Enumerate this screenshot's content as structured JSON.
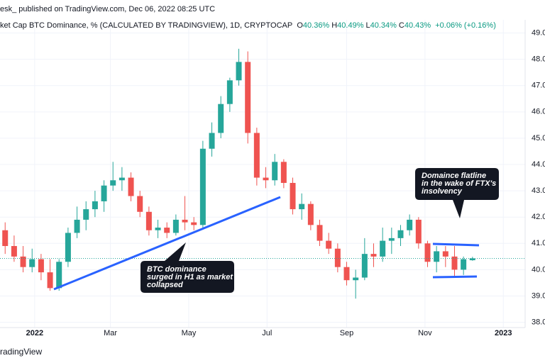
{
  "chart_data": {
    "type": "candlestick",
    "publisher_line": "esk_ published on TradingView.com, Dec 06, 2022 08:25 UTC",
    "title": "ket Cap BTC Dominance, % (CALCULATED BY TRADINGVIEW), 1D, CRYPTOCAP",
    "ohlc_legend": [
      {
        "label": "O",
        "value": "40.36%"
      },
      {
        "label": "H",
        "value": "40.49%"
      },
      {
        "label": "L",
        "value": "40.34%"
      },
      {
        "label": "C",
        "value": "40.43%"
      }
    ],
    "change": "+0.06% (+0.16%)",
    "footer": "radingView",
    "up_color": "#26a69a",
    "down_color": "#ef5350",
    "grid": true,
    "xlim": [
      "2021-12-05",
      "2023-01-18"
    ],
    "xticks": [
      {
        "value": "2022-01-01",
        "label": "2022"
      },
      {
        "value": "2022-03-01",
        "label": "Mar"
      },
      {
        "value": "2022-05-01",
        "label": "May"
      },
      {
        "value": "2022-07-01",
        "label": "Jul"
      },
      {
        "value": "2022-09-01",
        "label": "Sep"
      },
      {
        "value": "2022-11-01",
        "label": "Nov"
      },
      {
        "value": "2023-01-01",
        "label": "2023"
      }
    ],
    "ylim": [
      37.8,
      49.5
    ],
    "yticks": [
      {
        "value": 38,
        "label": "38.00"
      },
      {
        "value": 39,
        "label": "39.00"
      },
      {
        "value": 40,
        "label": "40.00"
      },
      {
        "value": 41,
        "label": "41.00"
      },
      {
        "value": 42,
        "label": "42.00"
      },
      {
        "value": 43,
        "label": "43.00"
      },
      {
        "value": 44,
        "label": "44.00"
      },
      {
        "value": 45,
        "label": "45.00"
      },
      {
        "value": 46,
        "label": "46.00"
      },
      {
        "value": 47,
        "label": "47.00"
      },
      {
        "value": 48,
        "label": "48.00"
      },
      {
        "value": 49,
        "label": "49.00"
      }
    ],
    "x": [
      "2021-12-06",
      "2021-12-13",
      "2021-12-20",
      "2021-12-27",
      "2022-01-03",
      "2022-01-10",
      "2022-01-17",
      "2022-01-24",
      "2022-01-31",
      "2022-02-07",
      "2022-02-14",
      "2022-02-21",
      "2022-02-28",
      "2022-03-07",
      "2022-03-14",
      "2022-03-21",
      "2022-03-28",
      "2022-04-04",
      "2022-04-11",
      "2022-04-18",
      "2022-04-25",
      "2022-05-02",
      "2022-05-09",
      "2022-05-16",
      "2022-05-23",
      "2022-05-30",
      "2022-06-06",
      "2022-06-13",
      "2022-06-20",
      "2022-06-27",
      "2022-07-04",
      "2022-07-11",
      "2022-07-18",
      "2022-07-25",
      "2022-08-01",
      "2022-08-08",
      "2022-08-15",
      "2022-08-22",
      "2022-08-29",
      "2022-09-05",
      "2022-09-12",
      "2022-09-19",
      "2022-09-26",
      "2022-10-03",
      "2022-10-10",
      "2022-10-17",
      "2022-10-24",
      "2022-10-31",
      "2022-11-07",
      "2022-11-14",
      "2022-11-21",
      "2022-11-28",
      "2022-12-05"
    ],
    "open": [
      41.5,
      40.9,
      40.5,
      40.1,
      40.4,
      39.9,
      39.3,
      40.3,
      41.4,
      41.9,
      42.3,
      42.6,
      43.2,
      43.4,
      43.5,
      42.8,
      42.2,
      41.5,
      41.6,
      41.4,
      41.9,
      41.8,
      41.7,
      44.6,
      45.2,
      46.3,
      47.2,
      47.9,
      45.2,
      43.5,
      43.4,
      44.1,
      43.3,
      42.3,
      42.5,
      41.7,
      41.1,
      40.8,
      40.1,
      39.6,
      39.7,
      40.6,
      40.5,
      41.1,
      41.2,
      41.5,
      41.9,
      41.0,
      40.3,
      40.7,
      40.5,
      40.0,
      40.36
    ],
    "high": [
      41.8,
      41.3,
      40.9,
      40.8,
      40.6,
      40.4,
      40.4,
      41.6,
      42.4,
      42.6,
      43.0,
      43.4,
      44.1,
      43.9,
      43.7,
      43.0,
      42.4,
      41.9,
      41.8,
      42.1,
      42.8,
      42.0,
      44.9,
      45.6,
      46.6,
      47.3,
      48.4,
      48.3,
      45.4,
      43.9,
      44.4,
      44.2,
      43.5,
      42.9,
      42.6,
      41.9,
      41.4,
      41.0,
      40.3,
      40.0,
      41.2,
      41.0,
      41.6,
      41.6,
      41.7,
      42.1,
      42.0,
      41.1,
      40.9,
      40.9,
      40.9,
      40.5,
      40.49
    ],
    "low": [
      40.6,
      40.3,
      39.9,
      39.9,
      39.6,
      39.2,
      39.2,
      40.1,
      41.2,
      41.5,
      42.0,
      42.2,
      43.0,
      43.0,
      42.6,
      42.0,
      41.3,
      41.2,
      41.2,
      41.3,
      41.5,
      41.5,
      41.6,
      44.3,
      45.0,
      46.0,
      47.0,
      44.8,
      43.2,
      43.1,
      43.2,
      43.1,
      42.1,
      41.9,
      41.5,
      40.9,
      40.6,
      39.9,
      39.4,
      38.9,
      39.6,
      40.1,
      40.3,
      40.6,
      40.9,
      41.3,
      40.8,
      40.1,
      39.9,
      40.1,
      39.7,
      39.8,
      40.34
    ],
    "close": [
      40.9,
      40.5,
      40.1,
      40.4,
      39.9,
      39.3,
      40.3,
      41.4,
      41.9,
      42.3,
      42.6,
      43.2,
      43.4,
      43.5,
      42.8,
      42.2,
      41.5,
      41.6,
      41.4,
      41.9,
      41.8,
      41.7,
      44.6,
      45.2,
      46.3,
      47.2,
      47.9,
      45.2,
      43.5,
      43.4,
      44.1,
      43.3,
      42.3,
      42.5,
      41.7,
      41.1,
      40.8,
      40.1,
      39.6,
      39.7,
      40.6,
      40.5,
      41.1,
      41.2,
      41.5,
      41.9,
      41.0,
      40.3,
      40.7,
      40.5,
      40.0,
      40.4,
      40.43
    ],
    "annotations": [
      {
        "lines": [
          "BTC dominance",
          "surged in H1 as market",
          "collapsed"
        ]
      },
      {
        "lines": [
          "Domaince flatline",
          "in the wake of FTX's",
          "insolvency"
        ]
      }
    ]
  }
}
